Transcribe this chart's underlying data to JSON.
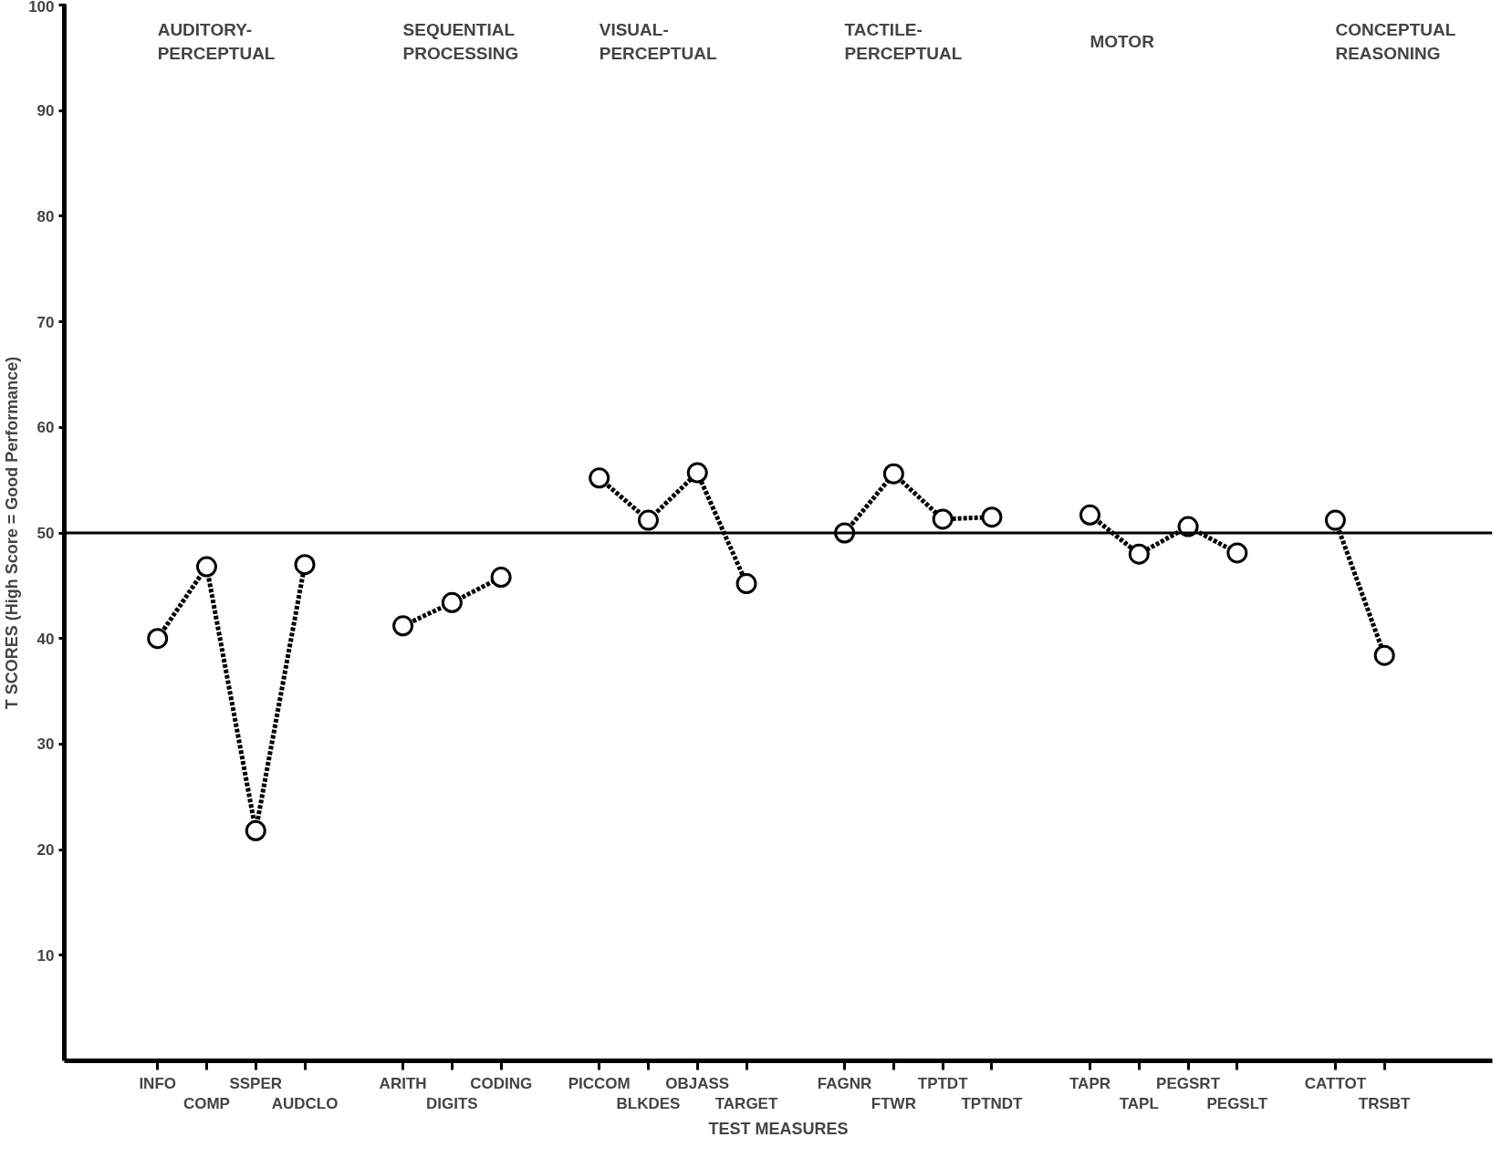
{
  "chart_data": {
    "type": "line",
    "xlabel": "TEST MEASURES",
    "ylabel": "T SCORES (High Score = Good Performance)",
    "categories": [
      "INFO",
      "COMP",
      "SSPER",
      "AUDCLO",
      null,
      "ARITH",
      "DIGITS",
      "CODING",
      null,
      "PICCOM",
      "BLKDES",
      "OBJASS",
      "TARGET",
      null,
      "FAGNR",
      "FTWR",
      "TPTDT",
      "TPTNDT",
      null,
      "TAPR",
      "TAPL",
      "PEGSRT",
      "PEGSLT",
      null,
      "CATTOT",
      "TRSBT"
    ],
    "series": [
      {
        "color": "#000000",
        "values": [
          40.0,
          46.8,
          21.8,
          47.0,
          null,
          41.2,
          43.4,
          45.8,
          null,
          55.2,
          51.2,
          55.7,
          45.2,
          null,
          50.0,
          55.6,
          51.3,
          51.5,
          null,
          51.7,
          48.0,
          50.6,
          48.1,
          null,
          51.2,
          38.4
        ]
      }
    ],
    "ylim": [
      0,
      100
    ],
    "yticks": [
      10,
      20,
      30,
      40,
      50,
      60,
      70,
      80,
      90,
      100
    ],
    "ref_lines": [
      {
        "axis": "y",
        "value": 50,
        "color": "#000000",
        "line_style": "solid"
      }
    ],
    "annotations": [
      "AUDITORY-\nPERCEPTUAL",
      "SEQUENTIAL\nPROCESSING",
      "VISUAL-\nPERCEPTUAL",
      "TACTILE-\nPERCEPTUAL",
      "MOTOR",
      "CONCEPTUAL\nREASONING"
    ],
    "grid": false,
    "marker": "circle",
    "line_style": "dashed"
  }
}
